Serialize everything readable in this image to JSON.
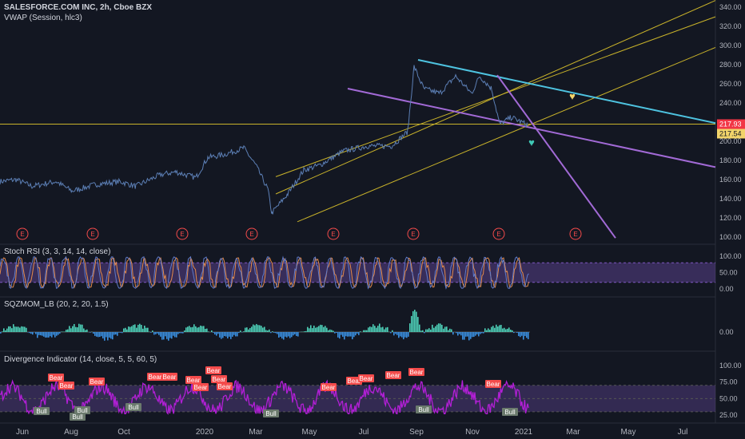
{
  "header": {
    "symbol": "SALESFORCE.COM INC, 2h, Cboe BZX",
    "vwap": "VWAP (Session, hlc3)"
  },
  "colors": {
    "background": "#131722",
    "price_line": "#5c7fb5",
    "channel": "#c9b32a",
    "resistance": "#4ec3e0",
    "purple_line": "#a26ad6",
    "horizontal": "#c9b32a",
    "stoch_k": "#5f7ac9",
    "stoch_d": "#e48a4a",
    "stoch_band": "#7e57c2",
    "div_line": "#b21fd6",
    "bear_label": "#f44b4b",
    "bull_label": "#6b7a6d",
    "mom_up": "#4dd0b8",
    "mom_down": "#3a8fe0",
    "earnings": "#f44b4b"
  },
  "chart_data": [
    {
      "type": "line",
      "name": "price",
      "title": "SALESFORCE.COM INC, 2h, Cboe BZX",
      "x_labels": [
        "Jun",
        "Aug",
        "Oct",
        "2020",
        "Mar",
        "May",
        "Jul",
        "Sep",
        "Nov",
        "2021",
        "Mar",
        "May",
        "Jul"
      ],
      "y_ticks": [
        "340.00",
        "320.00",
        "300.00",
        "280.00",
        "260.00",
        "240.00",
        "220.00",
        "200.00",
        "180.00",
        "160.00",
        "140.00",
        "120.00",
        "100.00"
      ],
      "ylim": [
        100,
        340
      ],
      "markers": {
        "price_label": "217.93",
        "last_label": "217.54"
      },
      "earnings_label": "E",
      "earnings_count": 8,
      "series_keypoints": [
        [
          0,
          158
        ],
        [
          20,
          160
        ],
        [
          40,
          153
        ],
        [
          70,
          158
        ],
        [
          90,
          148
        ],
        [
          120,
          155
        ],
        [
          150,
          158
        ],
        [
          170,
          153
        ],
        [
          200,
          165
        ],
        [
          220,
          168
        ],
        [
          245,
          162
        ],
        [
          260,
          183
        ],
        [
          280,
          186
        ],
        [
          305,
          193
        ],
        [
          320,
          175
        ],
        [
          335,
          150
        ],
        [
          340,
          125
        ],
        [
          360,
          145
        ],
        [
          380,
          170
        ],
        [
          400,
          175
        ],
        [
          430,
          190
        ],
        [
          460,
          195
        ],
        [
          490,
          195
        ],
        [
          510,
          210
        ],
        [
          518,
          278
        ],
        [
          530,
          255
        ],
        [
          550,
          250
        ],
        [
          570,
          268
        ],
        [
          590,
          250
        ],
        [
          600,
          268
        ],
        [
          615,
          255
        ],
        [
          625,
          218
        ],
        [
          640,
          225
        ],
        [
          660,
          217
        ]
      ]
    },
    {
      "type": "line",
      "name": "stoch_rsi",
      "title": "Stoch RSI (3, 3, 14, 14, close)",
      "y_ticks": [
        "100.00",
        "50.00",
        "0.00"
      ],
      "ylim": [
        0,
        100
      ]
    },
    {
      "type": "bar",
      "name": "sqzmom",
      "title": "SQZMOM_LB (20, 2, 20, 1.5)",
      "y_ticks": [
        "0.00"
      ]
    },
    {
      "type": "line",
      "name": "divergence",
      "title": "Divergence Indicator (14, close, 5, 5, 60, 5)",
      "y_ticks": [
        "100.00",
        "75.00",
        "50.00",
        "25.00"
      ],
      "ylim": [
        25,
        100
      ],
      "bear_label": "Bear",
      "bull_label": "Bull"
    }
  ]
}
